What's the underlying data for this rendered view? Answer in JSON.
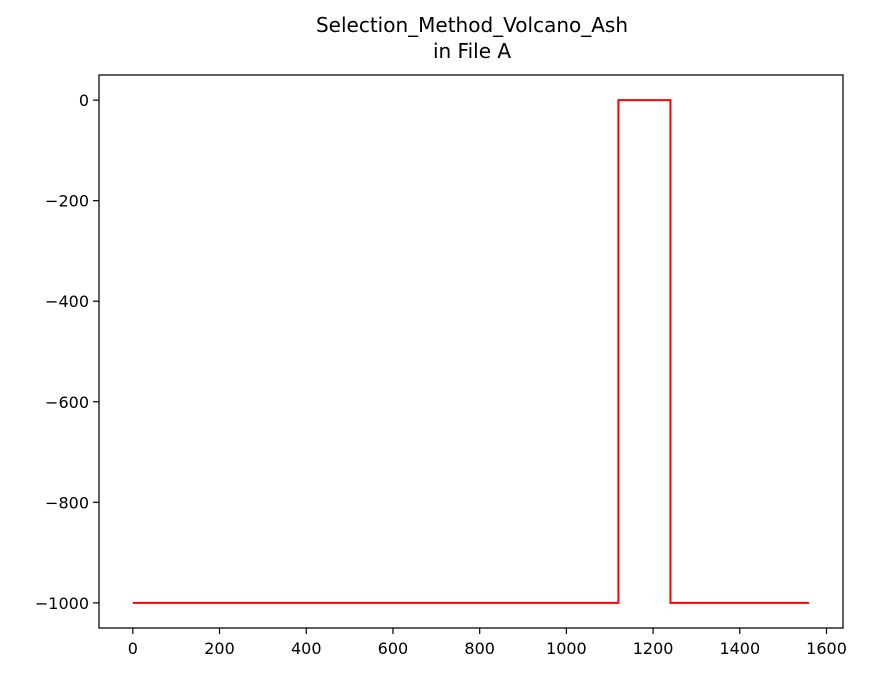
{
  "chart_data": {
    "type": "line",
    "title": "Selection_Method_Volcano_Ash",
    "subtitle": "in File A",
    "xlabel": "",
    "ylabel": "",
    "xlim": [
      -78,
      1638
    ],
    "ylim": [
      -1050,
      50
    ],
    "x_ticks": [
      0,
      200,
      400,
      600,
      800,
      1000,
      1200,
      1400,
      1600
    ],
    "y_ticks": [
      0,
      -200,
      -400,
      -600,
      -800,
      -1000
    ],
    "x_tick_labels": [
      "0",
      "200",
      "400",
      "600",
      "800",
      "1000",
      "1200",
      "1400",
      "1600"
    ],
    "y_tick_labels": [
      "0",
      "−200",
      "−400",
      "−600",
      "−800",
      "−1000"
    ],
    "grid": false,
    "series": [
      {
        "color": "#ff0000",
        "x": [
          0,
          1120,
          1120,
          1240,
          1240,
          1560
        ],
        "y": [
          -1000,
          -1000,
          0,
          0,
          -1000,
          -1000
        ]
      }
    ]
  }
}
